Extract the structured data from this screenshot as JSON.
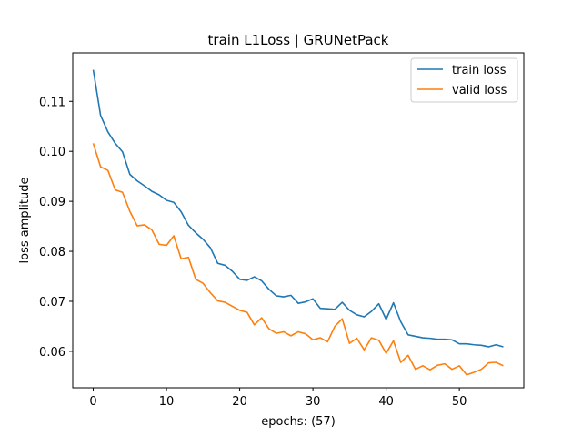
{
  "chart_data": {
    "type": "line",
    "title": "train L1Loss | GRUNetPack",
    "xlabel": "epochs: (57)",
    "ylabel": "loss amplitude",
    "xlim": [
      -2.8,
      58.8
    ],
    "ylim": [
      0.0527,
      0.1197
    ],
    "xticks": [
      0,
      10,
      20,
      30,
      40,
      50
    ],
    "yticks": [
      0.06,
      0.07,
      0.08,
      0.09,
      0.1,
      0.11
    ],
    "ytick_labels": [
      "0.06",
      "0.07",
      "0.08",
      "0.09",
      "0.10",
      "0.11"
    ],
    "grid": false,
    "legend_position": "top-right",
    "series": [
      {
        "name": "train loss",
        "color": "#1f77b4",
        "values": [
          0.1163,
          0.1072,
          0.1039,
          0.1016,
          0.0999,
          0.0954,
          0.0941,
          0.0931,
          0.092,
          0.0913,
          0.0902,
          0.0898,
          0.0879,
          0.0852,
          0.0837,
          0.0824,
          0.0807,
          0.0776,
          0.0772,
          0.076,
          0.0744,
          0.0742,
          0.0749,
          0.0741,
          0.0724,
          0.0711,
          0.0709,
          0.0712,
          0.0696,
          0.0699,
          0.0705,
          0.0686,
          0.0685,
          0.0684,
          0.0698,
          0.0682,
          0.0673,
          0.0669,
          0.068,
          0.0695,
          0.0664,
          0.0697,
          0.0659,
          0.0633,
          0.063,
          0.0627,
          0.0626,
          0.0624,
          0.0624,
          0.0623,
          0.0615,
          0.0615,
          0.0613,
          0.0612,
          0.0609,
          0.0613,
          0.0609
        ]
      },
      {
        "name": "valid loss",
        "color": "#ff7f0e",
        "values": [
          0.1016,
          0.0969,
          0.0962,
          0.0923,
          0.0918,
          0.088,
          0.0851,
          0.0853,
          0.0843,
          0.0814,
          0.0812,
          0.0831,
          0.0785,
          0.0788,
          0.0744,
          0.0736,
          0.0717,
          0.0701,
          0.0698,
          0.069,
          0.0682,
          0.0678,
          0.0653,
          0.0667,
          0.0645,
          0.0636,
          0.0639,
          0.0631,
          0.0639,
          0.0635,
          0.0623,
          0.0627,
          0.0619,
          0.065,
          0.0665,
          0.0616,
          0.0626,
          0.0603,
          0.0627,
          0.0622,
          0.0596,
          0.0621,
          0.0578,
          0.0592,
          0.0564,
          0.0571,
          0.0563,
          0.0572,
          0.0575,
          0.0564,
          0.0571,
          0.0553,
          0.0558,
          0.0564,
          0.0577,
          0.0578,
          0.0571
        ]
      }
    ]
  }
}
